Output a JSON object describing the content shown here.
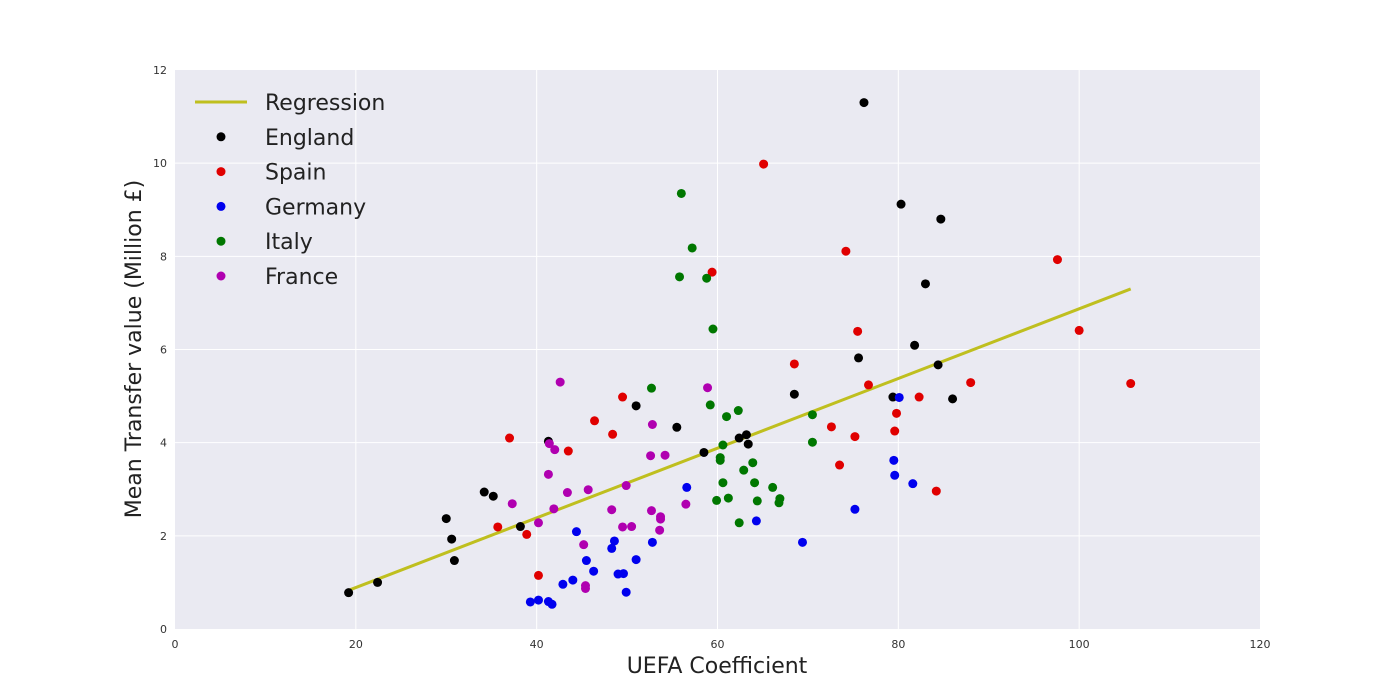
{
  "chart_data": {
    "type": "scatter",
    "title": "",
    "xlabel": "UEFA Coefficient",
    "ylabel": "Mean Transfer value (Million £)",
    "xlim": [
      0,
      120
    ],
    "ylim": [
      0,
      12
    ],
    "xticks": [
      0,
      20,
      40,
      60,
      80,
      100,
      120
    ],
    "yticks": [
      0,
      2,
      4,
      6,
      8,
      10,
      12
    ],
    "grid": true,
    "legend_position": "top-left",
    "regression": {
      "name": "Regression",
      "color": "#bfbf1f",
      "points": [
        [
          19.2,
          0.83
        ],
        [
          105.7,
          7.3
        ]
      ]
    },
    "series": [
      {
        "name": "England",
        "color": "#000000",
        "points": [
          [
            19.2,
            0.78
          ],
          [
            22.4,
            1.0
          ],
          [
            30.0,
            2.37
          ],
          [
            30.6,
            1.93
          ],
          [
            30.9,
            1.47
          ],
          [
            34.2,
            2.94
          ],
          [
            35.2,
            2.85
          ],
          [
            38.2,
            2.2
          ],
          [
            41.3,
            4.03
          ],
          [
            51.0,
            4.79
          ],
          [
            55.5,
            4.33
          ],
          [
            58.5,
            3.79
          ],
          [
            62.4,
            4.1
          ],
          [
            63.2,
            4.17
          ],
          [
            63.4,
            3.97
          ],
          [
            68.5,
            5.04
          ],
          [
            75.6,
            5.82
          ],
          [
            76.2,
            11.3
          ],
          [
            79.4,
            4.98
          ],
          [
            80.3,
            9.12
          ],
          [
            81.8,
            6.09
          ],
          [
            83.0,
            7.41
          ],
          [
            84.4,
            5.67
          ],
          [
            84.7,
            8.8
          ],
          [
            86.0,
            4.94
          ]
        ]
      },
      {
        "name": "Spain",
        "color": "#e00000",
        "points": [
          [
            35.7,
            2.19
          ],
          [
            37.0,
            4.1
          ],
          [
            38.9,
            2.03
          ],
          [
            40.2,
            1.15
          ],
          [
            43.5,
            3.82
          ],
          [
            46.4,
            4.47
          ],
          [
            48.4,
            4.18
          ],
          [
            49.5,
            4.98
          ],
          [
            59.4,
            7.66
          ],
          [
            65.1,
            9.98
          ],
          [
            68.5,
            5.69
          ],
          [
            72.6,
            4.34
          ],
          [
            73.5,
            3.52
          ],
          [
            74.2,
            8.11
          ],
          [
            75.2,
            4.13
          ],
          [
            75.5,
            6.39
          ],
          [
            76.7,
            5.24
          ],
          [
            79.6,
            4.25
          ],
          [
            79.8,
            4.63
          ],
          [
            82.3,
            4.98
          ],
          [
            84.2,
            2.96
          ],
          [
            88.0,
            5.29
          ],
          [
            97.6,
            7.93
          ],
          [
            100.0,
            6.41
          ],
          [
            105.7,
            5.27
          ]
        ]
      },
      {
        "name": "Germany",
        "color": "#0000ee",
        "points": [
          [
            39.3,
            0.58
          ],
          [
            40.2,
            0.62
          ],
          [
            41.3,
            0.59
          ],
          [
            41.7,
            0.53
          ],
          [
            42.9,
            0.96
          ],
          [
            44.0,
            1.05
          ],
          [
            44.4,
            2.09
          ],
          [
            45.5,
            1.47
          ],
          [
            46.3,
            1.24
          ],
          [
            48.3,
            1.73
          ],
          [
            48.6,
            1.89
          ],
          [
            49.0,
            1.18
          ],
          [
            49.6,
            1.19
          ],
          [
            49.9,
            0.79
          ],
          [
            51.0,
            1.49
          ],
          [
            52.8,
            1.86
          ],
          [
            56.6,
            3.04
          ],
          [
            64.3,
            2.32
          ],
          [
            69.4,
            1.86
          ],
          [
            75.2,
            2.57
          ],
          [
            79.5,
            3.62
          ],
          [
            79.6,
            3.3
          ],
          [
            80.1,
            4.97
          ],
          [
            81.6,
            3.12
          ]
        ]
      },
      {
        "name": "Italy",
        "color": "#007700",
        "points": [
          [
            52.7,
            5.17
          ],
          [
            55.8,
            7.56
          ],
          [
            56.0,
            9.35
          ],
          [
            57.2,
            8.18
          ],
          [
            58.8,
            7.53
          ],
          [
            59.2,
            4.81
          ],
          [
            59.5,
            6.44
          ],
          [
            59.9,
            2.76
          ],
          [
            60.3,
            3.68
          ],
          [
            60.3,
            3.62
          ],
          [
            60.6,
            3.95
          ],
          [
            60.6,
            3.14
          ],
          [
            61.0,
            4.56
          ],
          [
            61.2,
            2.81
          ],
          [
            62.3,
            4.69
          ],
          [
            62.4,
            2.28
          ],
          [
            62.9,
            3.41
          ],
          [
            63.9,
            3.57
          ],
          [
            64.1,
            3.14
          ],
          [
            64.4,
            2.75
          ],
          [
            66.1,
            3.04
          ],
          [
            66.8,
            2.71
          ],
          [
            66.9,
            2.8
          ],
          [
            70.5,
            4.6
          ],
          [
            70.5,
            4.01
          ]
        ]
      },
      {
        "name": "France",
        "color": "#b000b0",
        "points": [
          [
            37.3,
            2.69
          ],
          [
            40.2,
            2.28
          ],
          [
            41.3,
            3.32
          ],
          [
            41.4,
            3.98
          ],
          [
            41.9,
            2.58
          ],
          [
            42.0,
            3.85
          ],
          [
            42.6,
            5.3
          ],
          [
            43.4,
            2.93
          ],
          [
            45.2,
            1.81
          ],
          [
            45.4,
            0.93
          ],
          [
            45.4,
            0.87
          ],
          [
            45.7,
            2.99
          ],
          [
            48.3,
            2.56
          ],
          [
            49.5,
            2.19
          ],
          [
            49.9,
            3.08
          ],
          [
            50.5,
            2.2
          ],
          [
            52.6,
            3.72
          ],
          [
            52.7,
            2.54
          ],
          [
            52.8,
            4.39
          ],
          [
            53.6,
            2.12
          ],
          [
            53.7,
            2.41
          ],
          [
            53.7,
            2.36
          ],
          [
            54.2,
            3.73
          ],
          [
            56.5,
            2.68
          ],
          [
            58.9,
            5.18
          ]
        ]
      }
    ]
  }
}
